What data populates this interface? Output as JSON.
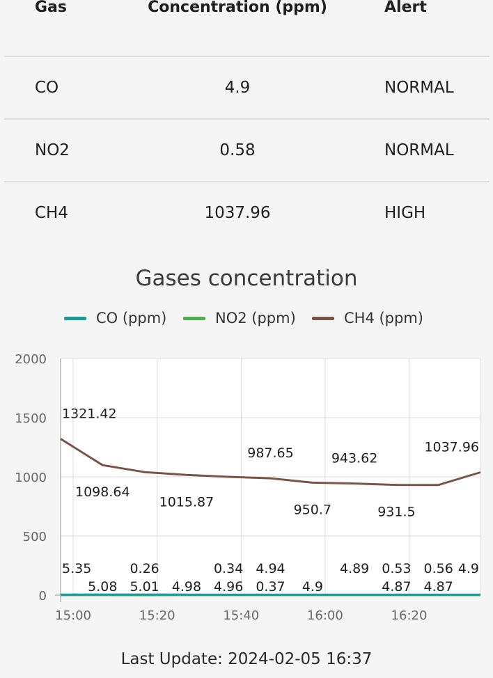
{
  "table": {
    "headers": [
      "Gas",
      "Concentration (ppm)",
      "Alert"
    ],
    "rows": [
      {
        "gas": "CO",
        "concentration": "4.9",
        "alert": "NORMAL"
      },
      {
        "gas": "NO2",
        "concentration": "0.58",
        "alert": "NORMAL"
      },
      {
        "gas": "CH4",
        "concentration": "1037.96",
        "alert": "HIGH"
      }
    ]
  },
  "chart_data": {
    "type": "line",
    "title": "Gases concentration",
    "x": [
      "14:57",
      "15:07",
      "15:17",
      "15:27",
      "15:37",
      "15:47",
      "15:57",
      "16:07",
      "16:17",
      "16:27",
      "16:37"
    ],
    "x_ticks": [
      "15:00",
      "15:20",
      "15:40",
      "16:00",
      "16:20"
    ],
    "ylim": [
      0,
      2000
    ],
    "y_ticks": [
      "0",
      "500",
      "1000",
      "1500",
      "2000"
    ],
    "grid": true,
    "legend_placement": "top",
    "series": [
      {
        "name": "CO (ppm)",
        "color": "#1a9c9c",
        "values": [
          5.35,
          5.08,
          5.01,
          4.98,
          4.96,
          4.94,
          4.9,
          4.89,
          4.87,
          4.87,
          4.9
        ]
      },
      {
        "name": "NO2 (ppm)",
        "color": "#4caf50",
        "values": [
          0.4,
          0.3,
          0.26,
          0.3,
          0.34,
          0.37,
          0.4,
          0.45,
          0.53,
          0.56,
          0.58
        ]
      },
      {
        "name": "CH4 (ppm)",
        "color": "#795548",
        "values": [
          1321.42,
          1098.64,
          1040,
          1015.87,
          1000,
          987.65,
          950.7,
          943.62,
          931.5,
          931,
          1037.96
        ]
      }
    ],
    "data_labels": [
      {
        "text": "1321.42",
        "series": 2,
        "index": 0
      },
      {
        "text": "1098.64",
        "series": 2,
        "index": 1
      },
      {
        "text": "1015.87",
        "series": 2,
        "index": 3
      },
      {
        "text": "987.65",
        "series": 2,
        "index": 5
      },
      {
        "text": "950.7",
        "series": 2,
        "index": 6
      },
      {
        "text": "943.62",
        "series": 2,
        "index": 7
      },
      {
        "text": "931.5",
        "series": 2,
        "index": 8
      },
      {
        "text": "1037.96",
        "series": 2,
        "index": 10
      },
      {
        "text": "5.35",
        "series": 0,
        "index": 0
      },
      {
        "text": "5.08",
        "series": 0,
        "index": 1
      },
      {
        "text": "5.01",
        "series": 0,
        "index": 2
      },
      {
        "text": "4.98",
        "series": 0,
        "index": 3
      },
      {
        "text": "4.96",
        "series": 0,
        "index": 4
      },
      {
        "text": "4.94",
        "series": 0,
        "index": 5
      },
      {
        "text": "4.9",
        "series": 0,
        "index": 6
      },
      {
        "text": "4.89",
        "series": 0,
        "index": 7
      },
      {
        "text": "4.87",
        "series": 0,
        "index": 8
      },
      {
        "text": "4.87",
        "series": 0,
        "index": 9
      },
      {
        "text": "4.9",
        "series": 0,
        "index": 10
      },
      {
        "text": "0.26",
        "series": 1,
        "index": 2
      },
      {
        "text": "0.34",
        "series": 1,
        "index": 4
      },
      {
        "text": "0.37",
        "series": 1,
        "index": 5
      },
      {
        "text": "0.53",
        "series": 1,
        "index": 8
      },
      {
        "text": "0.56",
        "series": 1,
        "index": 9
      }
    ]
  },
  "footer": {
    "last_update": "Last Update: 2024-02-05 16:37"
  }
}
